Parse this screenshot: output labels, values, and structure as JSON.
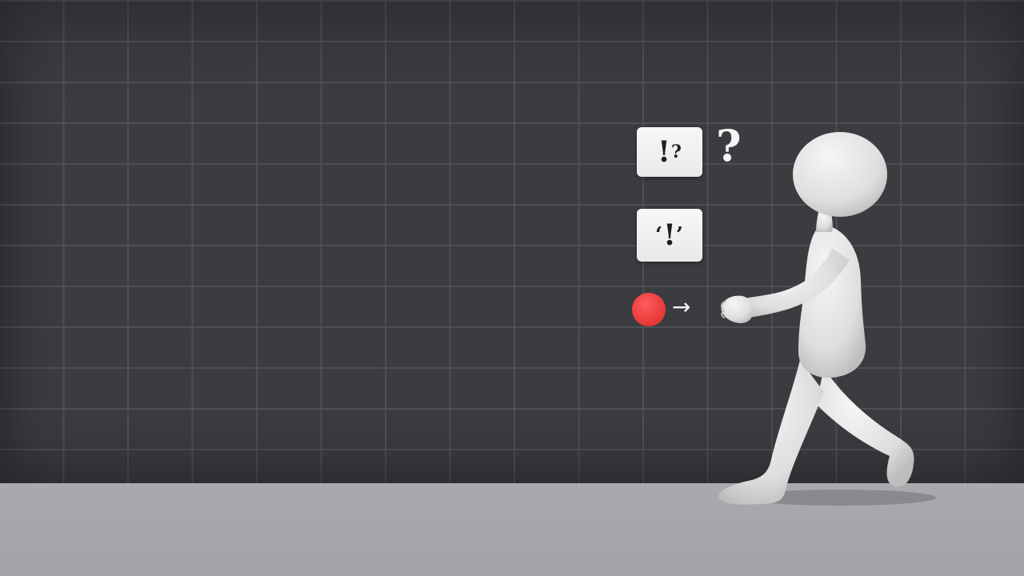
{
  "scene": {
    "card_1": {
      "main": "!",
      "small": "?"
    },
    "card_2": {
      "quote": "‘",
      "main": "!",
      "close": "’"
    },
    "question_mark": "?",
    "arrow": "→",
    "colors": {
      "wall": "#3b3c40",
      "grid": "#505258",
      "floor": "#a9aaad",
      "dot": "#e63636",
      "figure": "#e6e6e6"
    }
  }
}
